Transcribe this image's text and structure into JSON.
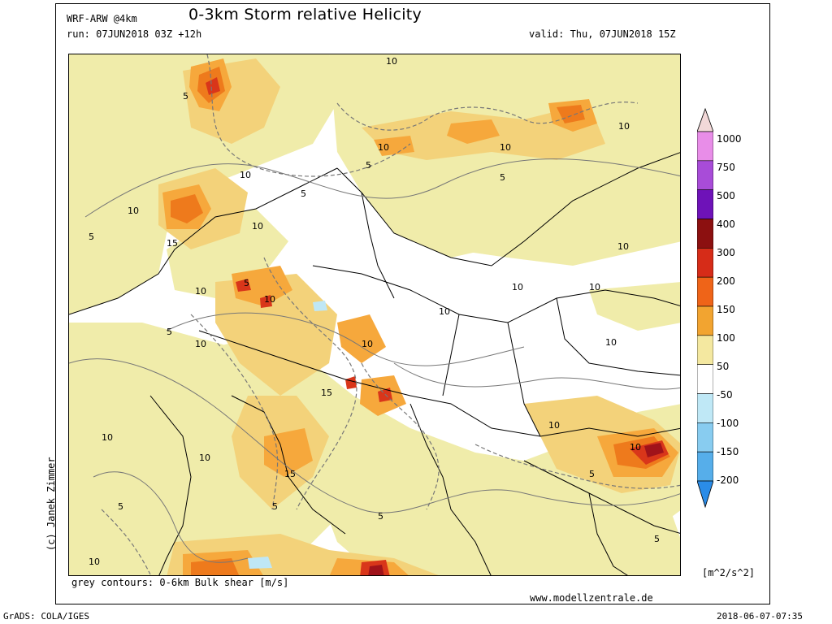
{
  "header": {
    "model": "WRF-ARW @4km",
    "title": "0-3km Storm relative Helicity",
    "run": "run: 07JUN2018 03Z +12h",
    "valid": "valid: Thu, 07JUN2018 15Z"
  },
  "map": {
    "contour_labels": [
      "5",
      "10",
      "15"
    ],
    "field_colors": {
      "bg_low": "#f0ecaa",
      "bg_50_100": "#f3d27a",
      "orange_100_150": "#f6a83c",
      "orange_150_200": "#ee7a1c",
      "red_200_300": "#d9361a",
      "darkred_300_400": "#a0131a",
      "negative": "#bfe7f5",
      "contour": "#777777",
      "border": "#000000"
    }
  },
  "colorbar": {
    "labels": [
      "1000",
      "750",
      "500",
      "400",
      "300",
      "200",
      "150",
      "100",
      "50",
      "-50",
      "-100",
      "-150",
      "-200"
    ],
    "colors": [
      "#f2d8d8",
      "#e88de8",
      "#a84cd8",
      "#6e12b8",
      "#8c1010",
      "#d62c18",
      "#ef6418",
      "#f2a430",
      "#f4e8a0",
      "#ffffff",
      "#bfe8f6",
      "#88ccf0",
      "#56aeea",
      "#2a8ce8"
    ],
    "units": "[m^2/s^2]"
  },
  "footer": {
    "credit": "(c) Janek Zimmer",
    "note": "grey contours: 0-6km Bulk shear [m/s]",
    "website": "www.modellzentrale.de",
    "grads": "GrADS: COLA/IGES",
    "timestamp": "2018-06-07-07:35"
  }
}
